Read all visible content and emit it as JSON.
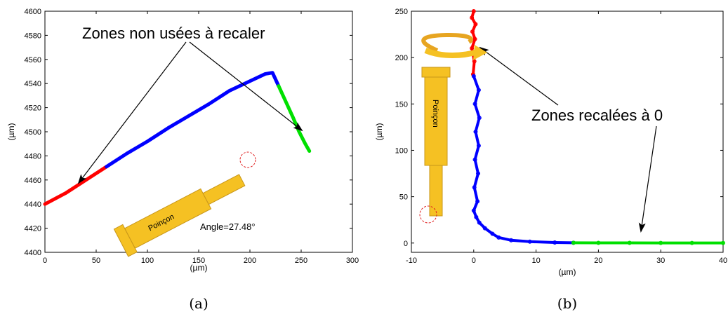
{
  "chart_data": [
    {
      "panel": "(a)",
      "type": "line",
      "xlabel": "(µm)",
      "ylabel": "(µm)",
      "xlim": [
        0,
        300
      ],
      "ylim": [
        4400,
        4600
      ],
      "xticks": [
        0,
        50,
        100,
        150,
        200,
        250,
        300
      ],
      "yticks": [
        4400,
        4420,
        4440,
        4460,
        4480,
        4500,
        4520,
        4540,
        4560,
        4580,
        4600
      ],
      "grid": false,
      "series": [
        {
          "color": "#ff0000",
          "x": [
            0,
            20,
            40,
            60
          ],
          "y": [
            4440,
            4449,
            4460,
            4471
          ]
        },
        {
          "color": "#0000ff",
          "x": [
            60,
            80,
            100,
            120,
            140,
            160,
            180,
            200,
            215,
            222,
            228
          ],
          "y": [
            4471,
            4482,
            4492,
            4503,
            4513,
            4523,
            4534,
            4542,
            4548,
            4549,
            4538
          ]
        },
        {
          "color": "#00e000",
          "x": [
            228,
            235,
            242,
            248,
            254,
            258
          ],
          "y": [
            4538,
            4525,
            4512,
            4500,
            4490,
            4484
          ]
        }
      ],
      "annotation": "Zones non usées à recaler",
      "inset_label": "Poinçon",
      "angle_label": "Angle=27.48°"
    },
    {
      "panel": "(b)",
      "type": "scatter",
      "xlabel": "(µm)",
      "ylabel": "(µm)",
      "xlim": [
        -10,
        40
      ],
      "ylim": [
        -10,
        250
      ],
      "xticks": [
        -10,
        0,
        10,
        20,
        30,
        40
      ],
      "yticks": [
        0,
        50,
        100,
        150,
        200,
        250
      ],
      "grid": false,
      "series": [
        {
          "color": "#ff0000",
          "x": [
            0,
            -0.3,
            0.3,
            -0.2,
            0.2,
            -0.3,
            0.1,
            -0.1
          ],
          "y": [
            250,
            243,
            236,
            228,
            220,
            210,
            196,
            182
          ]
        },
        {
          "color": "#0000ff",
          "x": [
            0,
            0.8,
            0.2,
            0.9,
            0.3,
            0.8,
            0.2,
            0.7,
            0.1,
            0.6,
            0.0,
            0.4,
            0.9,
            1.8,
            3.0,
            4.0,
            6.0,
            9.0,
            13.0,
            16.0
          ],
          "y": [
            180,
            165,
            150,
            135,
            120,
            105,
            90,
            75,
            60,
            45,
            35,
            28,
            22,
            16,
            10,
            6,
            3,
            1.5,
            0.6,
            0.3
          ]
        },
        {
          "color": "#00e000",
          "x": [
            16,
            20,
            25,
            30,
            35,
            40
          ],
          "y": [
            0.3,
            0.2,
            0.2,
            0.1,
            0.1,
            0.1
          ]
        }
      ],
      "annotation": "Zones recalées à 0",
      "inset_label": "Poinçon"
    }
  ]
}
